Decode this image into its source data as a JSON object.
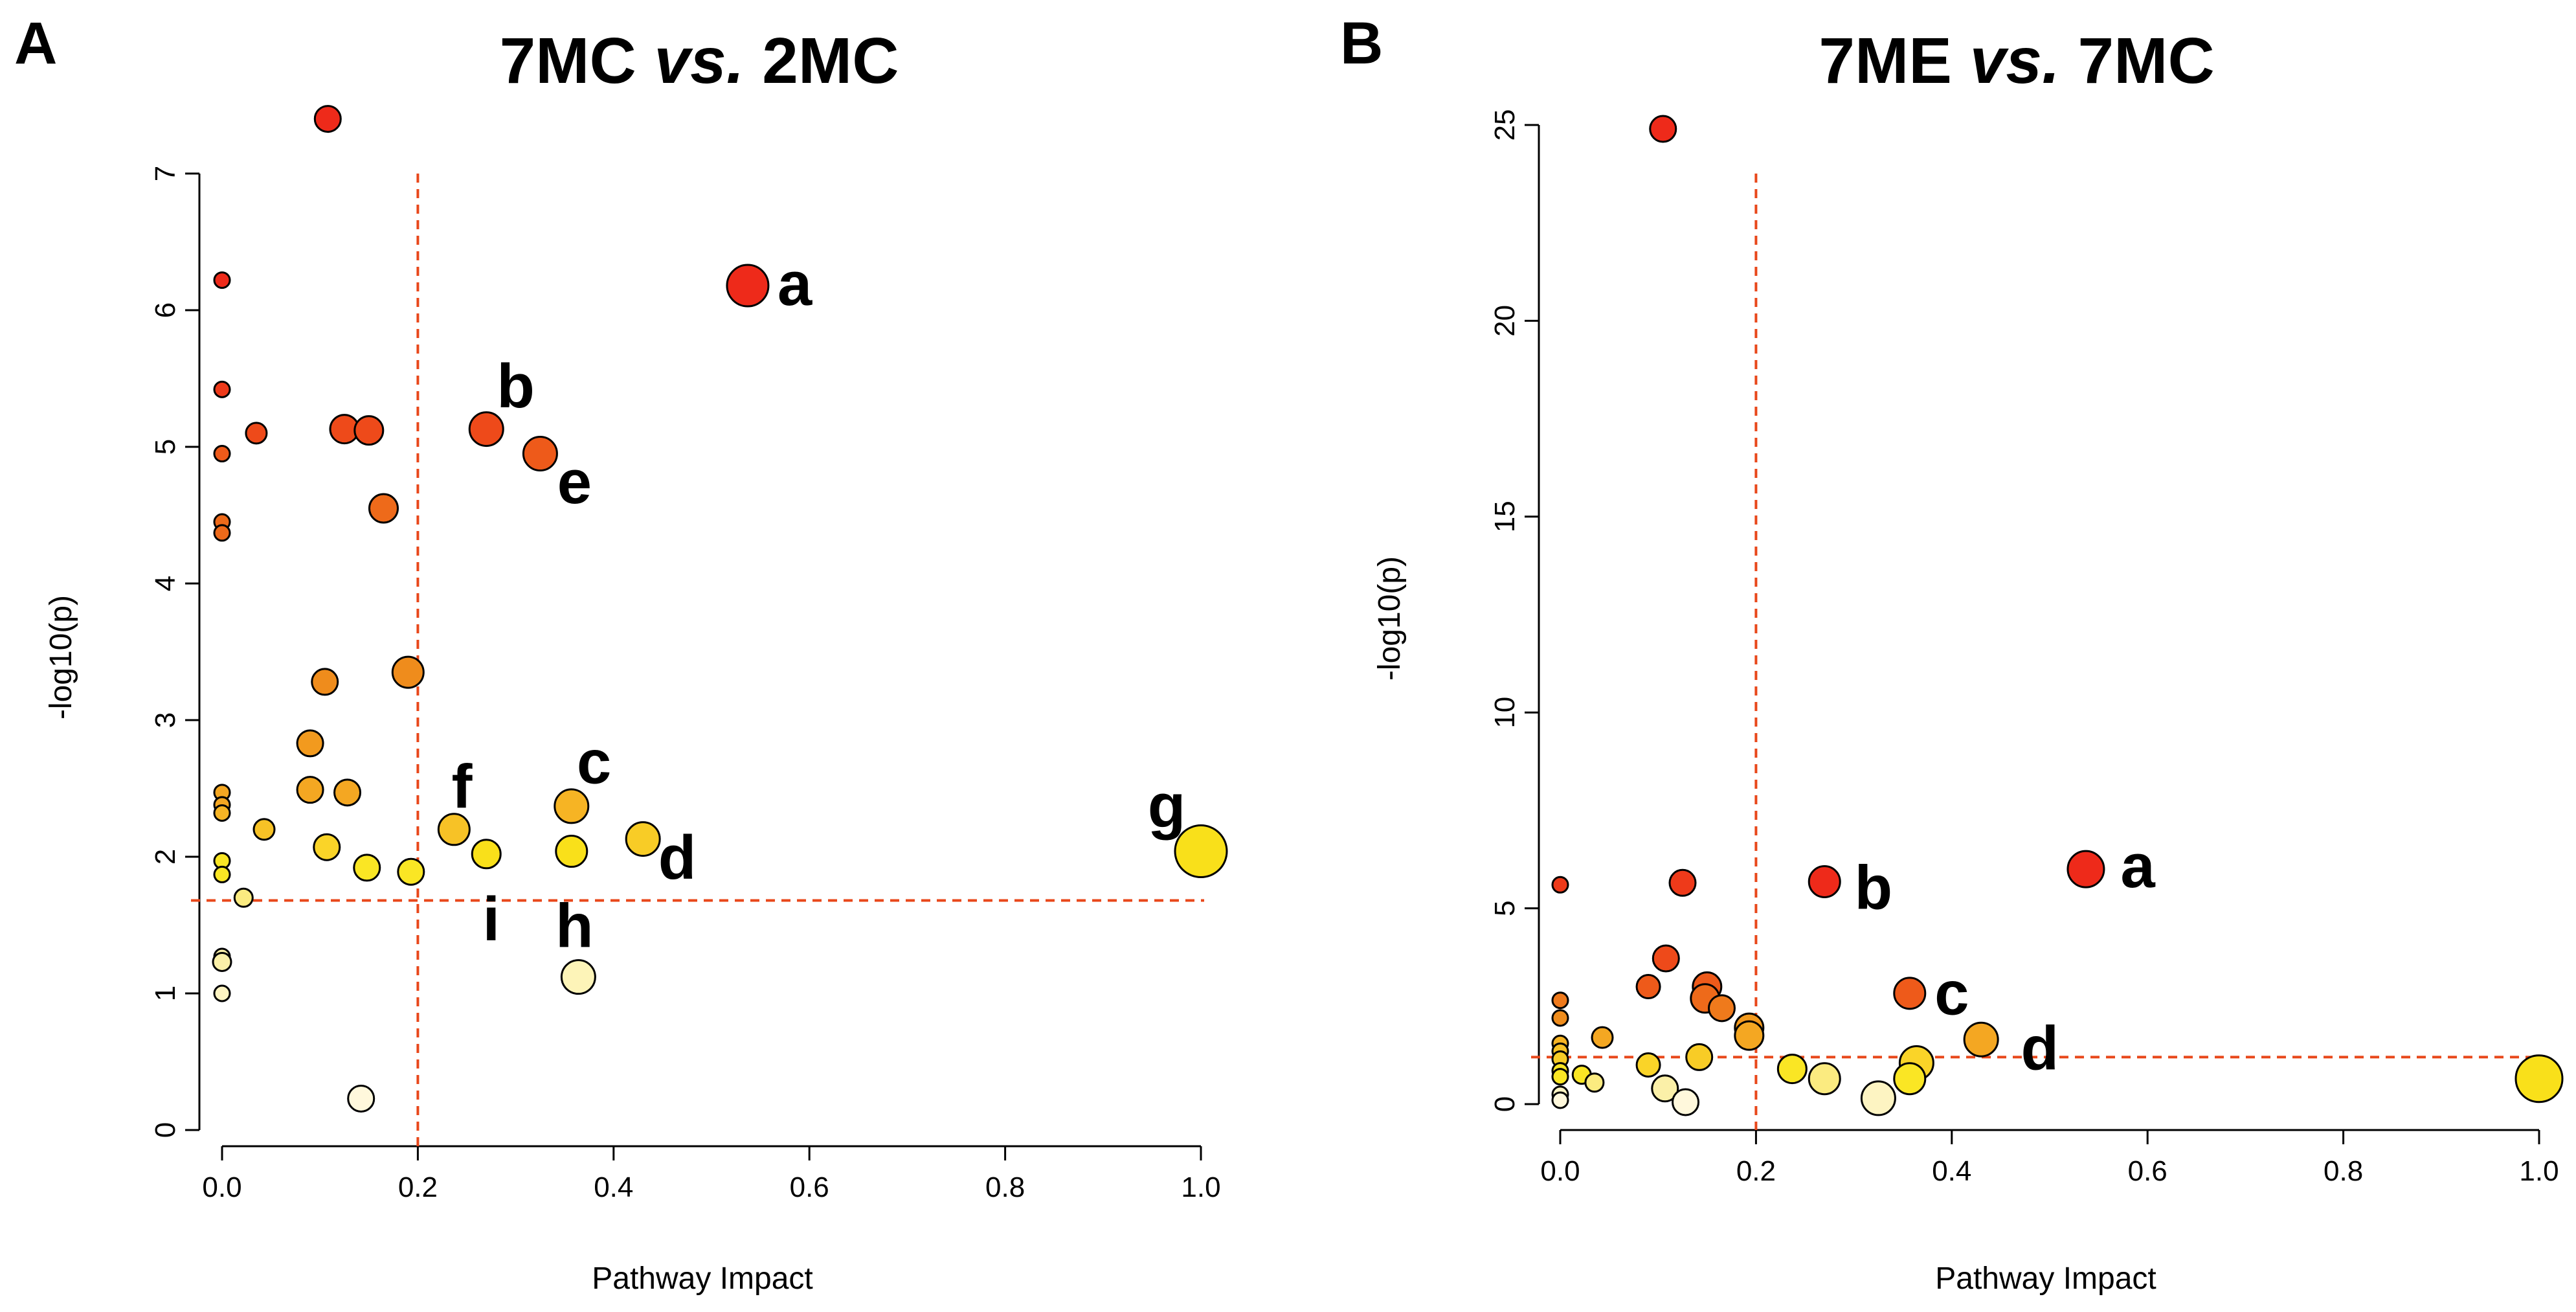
{
  "chart_data": [
    {
      "type": "scatter",
      "panel": "A",
      "title_parts": [
        "7MC ",
        "vs.",
        " 2MC"
      ],
      "xlabel": "Pathway Impact",
      "ylabel": "-log10(p)",
      "xlim": [
        0,
        1
      ],
      "ylim": [
        0,
        7
      ],
      "xticks": [
        "0.0",
        "0.2",
        "0.4",
        "0.6",
        "0.8",
        "1.0"
      ],
      "yticks": [
        "0",
        "1",
        "2",
        "3",
        "4",
        "5",
        "6",
        "7"
      ],
      "threshold_x": 0.2,
      "threshold_y": 1.68,
      "points": [
        {
          "x": 0.108,
          "y": 7.4,
          "size": 1.0,
          "color": "#ee2a1a"
        },
        {
          "x": 0.0,
          "y": 6.22,
          "size": 0.6,
          "color": "#ee2a1a"
        },
        {
          "x": 0.537,
          "y": 6.18,
          "size": 1.6,
          "color": "#ee2a1a"
        },
        {
          "x": 0.0,
          "y": 5.42,
          "size": 0.6,
          "color": "#ee3a1a"
        },
        {
          "x": 0.035,
          "y": 5.1,
          "size": 0.8,
          "color": "#ee4a1a"
        },
        {
          "x": 0.125,
          "y": 5.13,
          "size": 1.1,
          "color": "#ee4a1a"
        },
        {
          "x": 0.15,
          "y": 5.12,
          "size": 1.1,
          "color": "#ee4a1a"
        },
        {
          "x": 0.27,
          "y": 5.13,
          "size": 1.3,
          "color": "#ee4a1a"
        },
        {
          "x": 0.325,
          "y": 4.95,
          "size": 1.3,
          "color": "#ee5a1a"
        },
        {
          "x": 0.0,
          "y": 4.95,
          "size": 0.6,
          "color": "#ee5a1a"
        },
        {
          "x": 0.165,
          "y": 4.55,
          "size": 1.1,
          "color": "#ee6a1a"
        },
        {
          "x": 0.0,
          "y": 4.45,
          "size": 0.6,
          "color": "#ee6a1a"
        },
        {
          "x": 0.0,
          "y": 4.37,
          "size": 0.6,
          "color": "#ee6a1a"
        },
        {
          "x": 0.19,
          "y": 3.35,
          "size": 1.2,
          "color": "#ef8c1c"
        },
        {
          "x": 0.105,
          "y": 3.28,
          "size": 1.0,
          "color": "#ef8c1c"
        },
        {
          "x": 0.09,
          "y": 2.83,
          "size": 1.0,
          "color": "#f29a1e"
        },
        {
          "x": 0.09,
          "y": 2.49,
          "size": 1.0,
          "color": "#f4a722"
        },
        {
          "x": 0.128,
          "y": 2.47,
          "size": 1.0,
          "color": "#f4a722"
        },
        {
          "x": 0.0,
          "y": 2.47,
          "size": 0.6,
          "color": "#f4a722"
        },
        {
          "x": 0.0,
          "y": 2.38,
          "size": 0.6,
          "color": "#f4a722"
        },
        {
          "x": 0.0,
          "y": 2.32,
          "size": 0.6,
          "color": "#f6b424"
        },
        {
          "x": 0.357,
          "y": 2.37,
          "size": 1.3,
          "color": "#f6b424"
        },
        {
          "x": 0.043,
          "y": 2.2,
          "size": 0.8,
          "color": "#f7c226"
        },
        {
          "x": 0.237,
          "y": 2.2,
          "size": 1.2,
          "color": "#f7c226"
        },
        {
          "x": 0.43,
          "y": 2.13,
          "size": 1.3,
          "color": "#f8cc26"
        },
        {
          "x": 0.107,
          "y": 2.07,
          "size": 1.0,
          "color": "#fad428"
        },
        {
          "x": 1.0,
          "y": 2.04,
          "size": 2.0,
          "color": "#f9e01a"
        },
        {
          "x": 0.357,
          "y": 2.04,
          "size": 1.2,
          "color": "#f9e01a"
        },
        {
          "x": 0.27,
          "y": 2.02,
          "size": 1.1,
          "color": "#f9e01a"
        },
        {
          "x": 0.0,
          "y": 1.97,
          "size": 0.6,
          "color": "#fae624"
        },
        {
          "x": 0.148,
          "y": 1.92,
          "size": 1.0,
          "color": "#fae624"
        },
        {
          "x": 0.193,
          "y": 1.89,
          "size": 1.0,
          "color": "#fae624"
        },
        {
          "x": 0.0,
          "y": 1.87,
          "size": 0.6,
          "color": "#fae624"
        },
        {
          "x": 0.022,
          "y": 1.7,
          "size": 0.7,
          "color": "#fbeb80"
        },
        {
          "x": 0.0,
          "y": 1.27,
          "size": 0.6,
          "color": "#fbf0a8"
        },
        {
          "x": 0.0,
          "y": 1.23,
          "size": 0.7,
          "color": "#fbf0a8"
        },
        {
          "x": 0.364,
          "y": 1.12,
          "size": 1.3,
          "color": "#fdf4b8"
        },
        {
          "x": 0.0,
          "y": 1.0,
          "size": 0.6,
          "color": "#fdf4c2"
        },
        {
          "x": 0.142,
          "y": 0.23,
          "size": 1.0,
          "color": "#fff8dc"
        }
      ],
      "annotations": [
        {
          "text": "a",
          "x": 0.585,
          "y": 6.2
        },
        {
          "text": "b",
          "x": 0.3,
          "y": 5.45
        },
        {
          "text": "e",
          "x": 0.36,
          "y": 4.75
        },
        {
          "text": "c",
          "x": 0.38,
          "y": 2.7
        },
        {
          "text": "f",
          "x": 0.245,
          "y": 2.52
        },
        {
          "text": "d",
          "x": 0.465,
          "y": 2.0
        },
        {
          "text": "g",
          "x": 0.965,
          "y": 2.38
        },
        {
          "text": "i",
          "x": 0.275,
          "y": 1.55
        },
        {
          "text": "h",
          "x": 0.36,
          "y": 1.5
        }
      ]
    },
    {
      "type": "scatter",
      "panel": "B",
      "title_parts": [
        "7ME ",
        "vs.",
        " 7MC"
      ],
      "xlabel": "Pathway Impact",
      "ylabel": "-log10(p)",
      "xlim": [
        0,
        1
      ],
      "ylim": [
        0,
        25
      ],
      "xticks": [
        "0.0",
        "0.2",
        "0.4",
        "0.6",
        "0.8",
        "1.0"
      ],
      "yticks": [
        "0",
        "5",
        "10",
        "15",
        "20",
        "25"
      ],
      "threshold_x": 0.2,
      "threshold_y": 1.2,
      "points": [
        {
          "x": 0.105,
          "y": 24.9,
          "size": 1.0,
          "color": "#ee2a1a"
        },
        {
          "x": 0.537,
          "y": 6.0,
          "size": 1.4,
          "color": "#ee2a1a"
        },
        {
          "x": 0.27,
          "y": 5.68,
          "size": 1.2,
          "color": "#ee2a1a"
        },
        {
          "x": 0.125,
          "y": 5.65,
          "size": 1.0,
          "color": "#ee3a1a"
        },
        {
          "x": 0.0,
          "y": 5.6,
          "size": 0.6,
          "color": "#ee3a1a"
        },
        {
          "x": 0.108,
          "y": 3.72,
          "size": 1.0,
          "color": "#ee4a1a"
        },
        {
          "x": 0.15,
          "y": 3.0,
          "size": 1.1,
          "color": "#ee5a1a"
        },
        {
          "x": 0.09,
          "y": 3.0,
          "size": 0.9,
          "color": "#ee5a1a"
        },
        {
          "x": 0.357,
          "y": 2.83,
          "size": 1.2,
          "color": "#ee5a1a"
        },
        {
          "x": 0.148,
          "y": 2.7,
          "size": 1.1,
          "color": "#ee6a1a"
        },
        {
          "x": 0.0,
          "y": 2.65,
          "size": 0.6,
          "color": "#ef7a1c"
        },
        {
          "x": 0.165,
          "y": 2.45,
          "size": 1.0,
          "color": "#ef7a1c"
        },
        {
          "x": 0.0,
          "y": 2.2,
          "size": 0.6,
          "color": "#ef8c1c"
        },
        {
          "x": 0.193,
          "y": 1.95,
          "size": 1.1,
          "color": "#f29a1e"
        },
        {
          "x": 0.193,
          "y": 1.75,
          "size": 1.1,
          "color": "#f4a722"
        },
        {
          "x": 0.043,
          "y": 1.7,
          "size": 0.8,
          "color": "#f4a722"
        },
        {
          "x": 0.43,
          "y": 1.65,
          "size": 1.3,
          "color": "#f4a722"
        },
        {
          "x": 0.0,
          "y": 1.55,
          "size": 0.6,
          "color": "#f6b424"
        },
        {
          "x": 0.0,
          "y": 1.35,
          "size": 0.6,
          "color": "#f7c226"
        },
        {
          "x": 0.142,
          "y": 1.2,
          "size": 1.0,
          "color": "#f8cc26"
        },
        {
          "x": 0.0,
          "y": 1.15,
          "size": 0.6,
          "color": "#f8cc26"
        },
        {
          "x": 0.364,
          "y": 1.05,
          "size": 1.3,
          "color": "#fad428"
        },
        {
          "x": 0.09,
          "y": 1.0,
          "size": 0.9,
          "color": "#fad428"
        },
        {
          "x": 0.237,
          "y": 0.9,
          "size": 1.1,
          "color": "#fae624"
        },
        {
          "x": 0.0,
          "y": 0.85,
          "size": 0.6,
          "color": "#fae624"
        },
        {
          "x": 0.022,
          "y": 0.75,
          "size": 0.7,
          "color": "#fae624"
        },
        {
          "x": 0.0,
          "y": 0.7,
          "size": 0.6,
          "color": "#fae624"
        },
        {
          "x": 1.0,
          "y": 0.65,
          "size": 1.8,
          "color": "#f9e01a"
        },
        {
          "x": 0.357,
          "y": 0.65,
          "size": 1.2,
          "color": "#fae624"
        },
        {
          "x": 0.27,
          "y": 0.65,
          "size": 1.2,
          "color": "#fbeb80"
        },
        {
          "x": 0.035,
          "y": 0.55,
          "size": 0.7,
          "color": "#fbeb80"
        },
        {
          "x": 0.107,
          "y": 0.4,
          "size": 1.0,
          "color": "#fbf0a8"
        },
        {
          "x": 0.0,
          "y": 0.25,
          "size": 0.6,
          "color": "#fdf4c2"
        },
        {
          "x": 0.325,
          "y": 0.15,
          "size": 1.3,
          "color": "#fdf4c2"
        },
        {
          "x": 0.0,
          "y": 0.1,
          "size": 0.6,
          "color": "#fff8dc"
        },
        {
          "x": 0.128,
          "y": 0.05,
          "size": 1.0,
          "color": "#fff8dc"
        }
      ],
      "annotations": [
        {
          "text": "a",
          "x": 0.59,
          "y": 6.1
        },
        {
          "text": "b",
          "x": 0.32,
          "y": 5.55
        },
        {
          "text": "c",
          "x": 0.4,
          "y": 2.85
        },
        {
          "text": "d",
          "x": 0.49,
          "y": 1.45
        }
      ]
    }
  ]
}
